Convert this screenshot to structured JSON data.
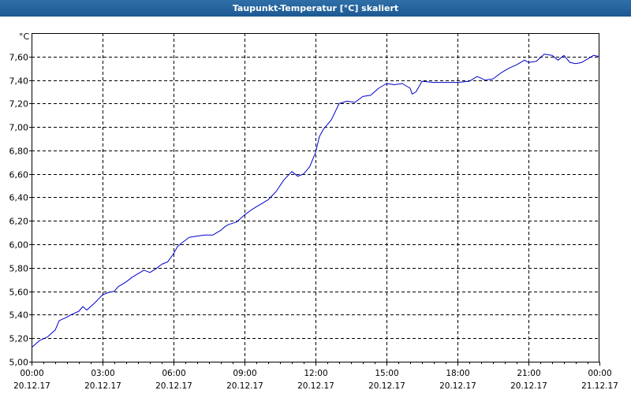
{
  "window": {
    "title": "Taupunkt-Temperatur [°C] skaliert"
  },
  "chart_data": {
    "type": "line",
    "title": "Taupunkt-Temperatur [°C] skaliert",
    "ylabel": "°C",
    "xlabel": "",
    "ylim": [
      5.0,
      7.8
    ],
    "xlim": [
      "2017-12-20 00:00",
      "2017-12-21 00:00"
    ],
    "grid": true,
    "x_ticks": [
      {
        "time": "00:00",
        "date": "20.12.17"
      },
      {
        "time": "03:00",
        "date": "20.12.17"
      },
      {
        "time": "06:00",
        "date": "20.12.17"
      },
      {
        "time": "09:00",
        "date": "20.12.17"
      },
      {
        "time": "12:00",
        "date": "20.12.17"
      },
      {
        "time": "15:00",
        "date": "20.12.17"
      },
      {
        "time": "18:00",
        "date": "20.12.17"
      },
      {
        "time": "21:00",
        "date": "20.12.17"
      },
      {
        "time": "00:00",
        "date": "21.12.17"
      }
    ],
    "y_ticks": [
      "5,00",
      "5,20",
      "5,40",
      "5,60",
      "5,80",
      "6,00",
      "6,20",
      "6,40",
      "6,60",
      "6,80",
      "7,00",
      "7,20",
      "7,40",
      "7,60"
    ],
    "colors": {
      "line": "#0000cc",
      "grid": "#000000",
      "axis": "#000000"
    },
    "series": [
      {
        "points": [
          [
            "2017-12-20 00:00",
            5.12
          ],
          [
            "2017-12-20 00:20",
            5.18
          ],
          [
            "2017-12-20 00:40",
            5.21
          ],
          [
            "2017-12-20 01:00",
            5.27
          ],
          [
            "2017-12-20 01:10",
            5.35
          ],
          [
            "2017-12-20 01:30",
            5.38
          ],
          [
            "2017-12-20 01:40",
            5.4
          ],
          [
            "2017-12-20 02:00",
            5.43
          ],
          [
            "2017-12-20 02:10",
            5.47
          ],
          [
            "2017-12-20 02:20",
            5.44
          ],
          [
            "2017-12-20 02:40",
            5.5
          ],
          [
            "2017-12-20 03:00",
            5.57
          ],
          [
            "2017-12-20 03:15",
            5.59
          ],
          [
            "2017-12-20 03:30",
            5.6
          ],
          [
            "2017-12-20 03:40",
            5.64
          ],
          [
            "2017-12-20 03:50",
            5.66
          ],
          [
            "2017-12-20 04:00",
            5.68
          ],
          [
            "2017-12-20 04:15",
            5.72
          ],
          [
            "2017-12-20 04:30",
            5.75
          ],
          [
            "2017-12-20 04:45",
            5.78
          ],
          [
            "2017-12-20 05:00",
            5.76
          ],
          [
            "2017-12-20 05:15",
            5.79
          ],
          [
            "2017-12-20 05:30",
            5.83
          ],
          [
            "2017-12-20 05:45",
            5.85
          ],
          [
            "2017-12-20 06:00",
            5.92
          ],
          [
            "2017-12-20 06:10",
            5.98
          ],
          [
            "2017-12-20 06:20",
            6.01
          ],
          [
            "2017-12-20 06:40",
            6.06
          ],
          [
            "2017-12-20 07:00",
            6.07
          ],
          [
            "2017-12-20 07:20",
            6.08
          ],
          [
            "2017-12-20 07:40",
            6.08
          ],
          [
            "2017-12-20 08:00",
            6.12
          ],
          [
            "2017-12-20 08:10",
            6.15
          ],
          [
            "2017-12-20 08:20",
            6.17
          ],
          [
            "2017-12-20 08:40",
            6.19
          ],
          [
            "2017-12-20 09:00",
            6.25
          ],
          [
            "2017-12-20 09:20",
            6.3
          ],
          [
            "2017-12-20 09:40",
            6.34
          ],
          [
            "2017-12-20 10:00",
            6.38
          ],
          [
            "2017-12-20 10:20",
            6.45
          ],
          [
            "2017-12-20 10:40",
            6.55
          ],
          [
            "2017-12-20 11:00",
            6.62
          ],
          [
            "2017-12-20 11:15",
            6.58
          ],
          [
            "2017-12-20 11:30",
            6.6
          ],
          [
            "2017-12-20 11:45",
            6.66
          ],
          [
            "2017-12-20 12:00",
            6.78
          ],
          [
            "2017-12-20 12:10",
            6.92
          ],
          [
            "2017-12-20 12:20",
            6.98
          ],
          [
            "2017-12-20 12:40",
            7.06
          ],
          [
            "2017-12-20 13:00",
            7.2
          ],
          [
            "2017-12-20 13:20",
            7.22
          ],
          [
            "2017-12-20 13:40",
            7.21
          ],
          [
            "2017-12-20 14:00",
            7.26
          ],
          [
            "2017-12-20 14:20",
            7.27
          ],
          [
            "2017-12-20 14:40",
            7.33
          ],
          [
            "2017-12-20 15:00",
            7.37
          ],
          [
            "2017-12-20 15:20",
            7.36
          ],
          [
            "2017-12-20 15:40",
            7.37
          ],
          [
            "2017-12-20 16:00",
            7.33
          ],
          [
            "2017-12-20 16:05",
            7.28
          ],
          [
            "2017-12-20 16:15",
            7.3
          ],
          [
            "2017-12-20 16:30",
            7.39
          ],
          [
            "2017-12-20 17:00",
            7.38
          ],
          [
            "2017-12-20 17:30",
            7.38
          ],
          [
            "2017-12-20 18:00",
            7.38
          ],
          [
            "2017-12-20 18:30",
            7.39
          ],
          [
            "2017-12-20 18:50",
            7.43
          ],
          [
            "2017-12-20 19:10",
            7.4
          ],
          [
            "2017-12-20 19:30",
            7.41
          ],
          [
            "2017-12-20 19:50",
            7.46
          ],
          [
            "2017-12-20 20:10",
            7.5
          ],
          [
            "2017-12-20 20:30",
            7.53
          ],
          [
            "2017-12-20 20:50",
            7.57
          ],
          [
            "2017-12-20 21:00",
            7.55
          ],
          [
            "2017-12-20 21:20",
            7.56
          ],
          [
            "2017-12-20 21:40",
            7.62
          ],
          [
            "2017-12-20 22:00",
            7.61
          ],
          [
            "2017-12-20 22:15",
            7.57
          ],
          [
            "2017-12-20 22:30",
            7.61
          ],
          [
            "2017-12-20 22:45",
            7.55
          ],
          [
            "2017-12-20 23:00",
            7.54
          ],
          [
            "2017-12-20 23:15",
            7.55
          ],
          [
            "2017-12-20 23:30",
            7.58
          ],
          [
            "2017-12-20 23:45",
            7.61
          ],
          [
            "2017-12-21 00:00",
            7.6
          ]
        ]
      }
    ]
  }
}
